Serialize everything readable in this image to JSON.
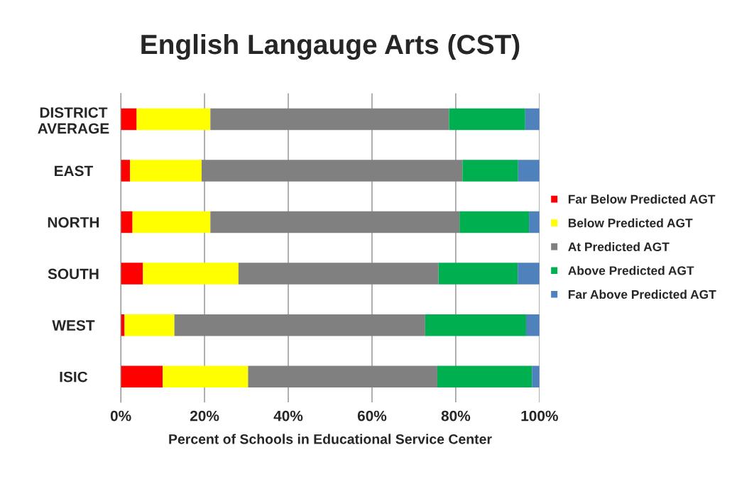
{
  "chart_data": {
    "type": "bar",
    "orientation": "horizontal",
    "stacked": true,
    "title": "English Langauge Arts (CST)",
    "xlabel": "Percent of Schools in Educational Service Center",
    "categories": [
      "DISTRICT\nAVERAGE",
      "EAST",
      "NORTH",
      "SOUTH",
      "WEST",
      "ISIC"
    ],
    "series": [
      {
        "name": "Far Below Predicted AGT",
        "color": "#ff0000",
        "values": [
          3.8,
          2.2,
          2.8,
          5.3,
          0.9,
          10.0
        ]
      },
      {
        "name": "Below Predicted AGT",
        "color": "#ffff00",
        "values": [
          17.6,
          17.1,
          18.6,
          22.8,
          11.9,
          20.4
        ]
      },
      {
        "name": "At Predicted AGT",
        "color": "#808080",
        "values": [
          57.0,
          62.3,
          59.5,
          47.8,
          59.9,
          45.2
        ]
      },
      {
        "name": "Above Predicted AGT",
        "color": "#00b050",
        "values": [
          18.2,
          13.3,
          16.6,
          18.9,
          24.1,
          22.6
        ]
      },
      {
        "name": "Far Above Predicted AGT",
        "color": "#4f81bd",
        "values": [
          3.4,
          5.1,
          2.5,
          5.2,
          3.2,
          1.8
        ]
      }
    ],
    "xlim": [
      0,
      100
    ],
    "xticks": [
      {
        "value": 0,
        "label": "0%"
      },
      {
        "value": 20,
        "label": "20%"
      },
      {
        "value": 40,
        "label": "40%"
      },
      {
        "value": 60,
        "label": "60%"
      },
      {
        "value": 80,
        "label": "80%"
      },
      {
        "value": 100,
        "label": "100%"
      }
    ],
    "grid": "x",
    "legend": "right"
  }
}
